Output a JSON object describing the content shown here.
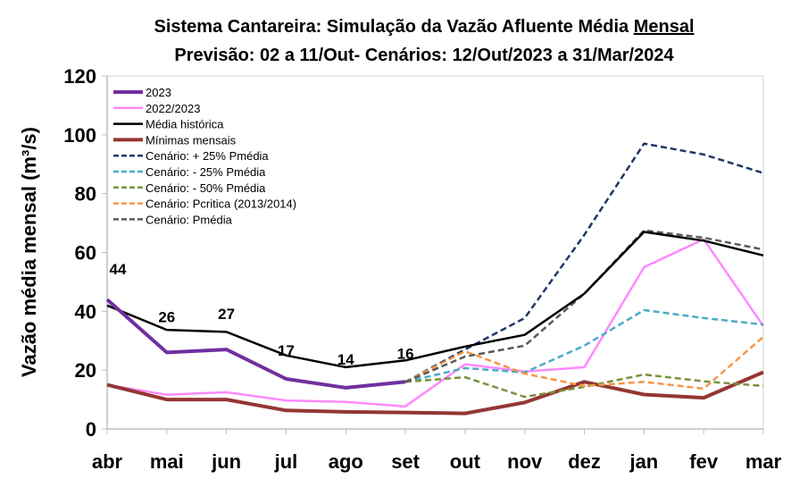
{
  "chart_data": {
    "type": "line",
    "title": "Sistema Cantareira: Simulação da Vazão Afluente Média ",
    "title_underlined": "Mensal",
    "subtitle": "Previsão: 02 a 11/Out- Cenários: 12/Out/2023 a 31/Mar/2024",
    "ylabel": "Vazão média mensal (m³/s)",
    "xlabel": "",
    "ylim": [
      0,
      120
    ],
    "yticks": [
      0,
      20,
      40,
      60,
      80,
      100,
      120
    ],
    "categories": [
      "abr",
      "mai",
      "jun",
      "jul",
      "ago",
      "set",
      "out",
      "nov",
      "dez",
      "jan",
      "fev",
      "mar"
    ],
    "legend_position": "top-left",
    "grid": false,
    "series": [
      {
        "name": "2023",
        "color": "#7030A0",
        "width": 4,
        "dash": false,
        "values": [
          44,
          26,
          27,
          17,
          14,
          16,
          null,
          null,
          null,
          null,
          null,
          null
        ],
        "labels": [
          "44",
          "26",
          "27",
          "17",
          "14",
          "16"
        ]
      },
      {
        "name": "2022/2023",
        "color": "#FF88FF",
        "width": 2.5,
        "dash": false,
        "values": [
          15,
          11.6,
          12.5,
          9.7,
          9.2,
          7.7,
          22,
          19.5,
          21,
          55,
          64.5,
          35
        ]
      },
      {
        "name": "Média histórica",
        "color": "#000000",
        "width": 2.5,
        "dash": false,
        "values": [
          42,
          33.7,
          33,
          25,
          21,
          23.3,
          28,
          32,
          46,
          67,
          64,
          59
        ]
      },
      {
        "name": "Mínimas mensais",
        "color": "#943634",
        "width": 4,
        "dash": false,
        "values": [
          15,
          10,
          10,
          6.3,
          5.8,
          5.6,
          5.3,
          9,
          16,
          11.7,
          10.6,
          19.3
        ]
      },
      {
        "name": "Cenário: + 25% Pmédia",
        "color": "#1F3864",
        "width": 2.5,
        "dash": true,
        "values": [
          null,
          null,
          null,
          null,
          null,
          16,
          27,
          37.7,
          66,
          97,
          93.3,
          87
        ]
      },
      {
        "name": "Cenário: - 25% Pmédia",
        "color": "#4BACC6",
        "width": 2.5,
        "dash": true,
        "values": [
          null,
          null,
          null,
          null,
          null,
          16,
          20.7,
          19.2,
          28.3,
          40.4,
          37.7,
          35.5
        ]
      },
      {
        "name": "Cenário: - 50% Pmédia",
        "color": "#77933C",
        "width": 2.5,
        "dash": true,
        "values": [
          null,
          null,
          null,
          null,
          null,
          16,
          17.6,
          10.9,
          14.3,
          18.5,
          16.2,
          14.6
        ]
      },
      {
        "name": "Cenário: Pcritica (2013/2014)",
        "color": "#F79646",
        "width": 2.5,
        "dash": true,
        "values": [
          null,
          null,
          null,
          null,
          null,
          16,
          26.4,
          18.8,
          14.6,
          16,
          13.7,
          31.3
        ]
      },
      {
        "name": "Cenário: Pmédia",
        "color": "#595959",
        "width": 2.5,
        "dash": true,
        "values": [
          null,
          null,
          null,
          null,
          null,
          16,
          24.6,
          28.3,
          46,
          67.5,
          65,
          61
        ]
      }
    ]
  }
}
